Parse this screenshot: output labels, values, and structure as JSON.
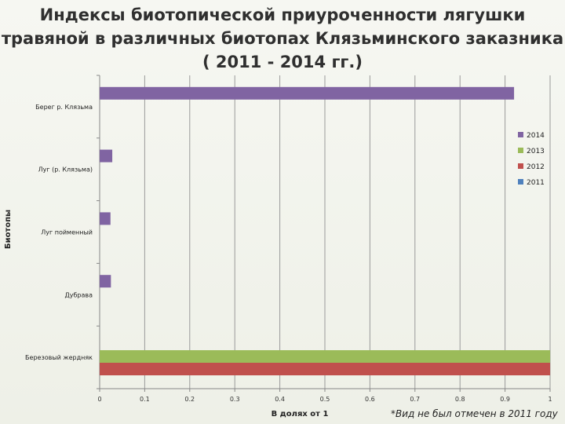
{
  "title": {
    "line1": "Индексы биотопической  приуроченности лягушки",
    "line2": "травяной в различных биотопах Клязьминского заказника",
    "line3": "( 2011 - 2014 гг.)"
  },
  "note": "*Вид не был отмечен в 2011 году",
  "chart_data": {
    "type": "bar",
    "orientation": "horizontal",
    "title": "Индексы биотопической  приуроченности лягушки травяной в различных биотопах Клязьминского заказника ( 2011 - 2014 гг.)",
    "xlabel": "В долях от 1",
    "ylabel": "Биотопы",
    "xlim": [
      0,
      1
    ],
    "xticks": [
      "0",
      "0.1",
      "0.2",
      "0.3",
      "0.4",
      "0.5",
      "0.6",
      "0.7",
      "0.8",
      "0.9",
      "1"
    ],
    "grid": true,
    "legend_position": "right",
    "categories": [
      "Березовый жердняк",
      "Дубрава",
      "Луг пойменный",
      "Луг (р. Клязьма)",
      "Берег р. Клязьма"
    ],
    "series": [
      {
        "name": "2011",
        "color": "#4f81bd",
        "values": [
          0,
          0,
          0,
          0,
          0
        ]
      },
      {
        "name": "2012",
        "color": "#c0504d",
        "values": [
          1.0,
          0,
          0,
          0,
          0
        ]
      },
      {
        "name": "2013",
        "color": "#9bbb59",
        "values": [
          1.0,
          0,
          0,
          0,
          0
        ]
      },
      {
        "name": "2014",
        "color": "#8064a2",
        "values": [
          0,
          0.025,
          0.024,
          0.028,
          0.92
        ]
      }
    ]
  }
}
